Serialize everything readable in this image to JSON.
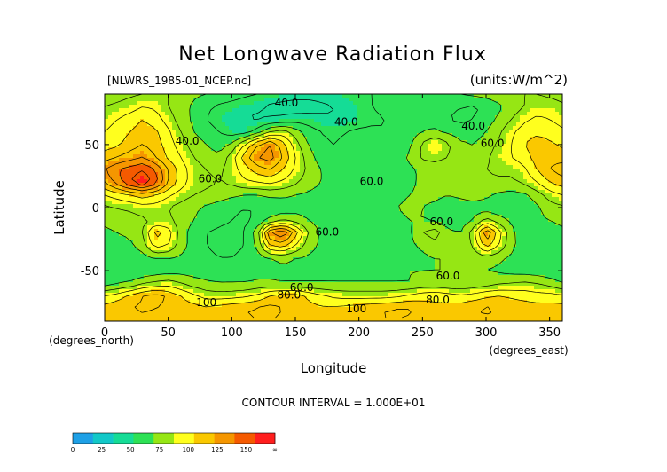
{
  "chart_data": {
    "type": "heatmap",
    "title": "Net Longwave Radiation Flux",
    "subtitle_left": "[NLWRS_1985-01_NCEP.nc]",
    "subtitle_right": "(units:W/m^2)",
    "xlabel": "Longitude",
    "ylabel": "Latitude",
    "x_unit_label": "(degrees_east)",
    "y_unit_label": "(degrees_north)",
    "xlim": [
      0,
      360
    ],
    "ylim": [
      -90,
      90
    ],
    "x_ticks": [
      "0",
      "50",
      "100",
      "150",
      "200",
      "250",
      "300",
      "350"
    ],
    "x_tick_values": [
      0,
      50,
      100,
      150,
      200,
      250,
      300,
      350
    ],
    "y_ticks": [
      "50",
      "0",
      "-50"
    ],
    "y_tick_values": [
      50,
      0,
      -50
    ],
    "contour_interval_text": "CONTOUR INTERVAL = 1.000E+01",
    "contour_labels": [
      {
        "text": "40.0",
        "x": 143,
        "y": 80
      },
      {
        "text": "40.0",
        "x": 190,
        "y": 65
      },
      {
        "text": "40.0",
        "x": 290,
        "y": 62
      },
      {
        "text": "40.0",
        "x": 65,
        "y": 50
      },
      {
        "text": "60.0",
        "x": 83,
        "y": 20
      },
      {
        "text": "60.0",
        "x": 305,
        "y": 48
      },
      {
        "text": "60.0",
        "x": 210,
        "y": 18
      },
      {
        "text": "60.0",
        "x": 265,
        "y": -14
      },
      {
        "text": "60.0",
        "x": 175,
        "y": -22
      },
      {
        "text": "60.0",
        "x": 270,
        "y": -57
      },
      {
        "text": "60.0",
        "x": 155,
        "y": -66
      },
      {
        "text": "80.0",
        "x": 145,
        "y": -72
      },
      {
        "text": "80.0",
        "x": 262,
        "y": -76
      },
      {
        "text": "100",
        "x": 80,
        "y": -78
      },
      {
        "text": "100",
        "x": 198,
        "y": -83
      }
    ],
    "colorbar": {
      "ticks": [
        "0",
        "25",
        "50",
        "75",
        "100",
        "125",
        "150",
        "∞"
      ],
      "colors": [
        "#1ea0e6",
        "#12c8c8",
        "#15dc96",
        "#2de155",
        "#96e614",
        "#ffff1e",
        "#fac800",
        "#f59600",
        "#f55a00",
        "#ff1e1e"
      ]
    },
    "data_description_grid": {
      "lon_step": 10,
      "lat_step": 10,
      "lats": [
        90,
        80,
        70,
        60,
        50,
        40,
        30,
        20,
        10,
        0,
        -10,
        -20,
        -30,
        -40,
        -50,
        -60,
        -70,
        -80,
        -90
      ],
      "values": [
        [
          65,
          66,
          68,
          70,
          72,
          70,
          66,
          62,
          60,
          58,
          55,
          52,
          50,
          48,
          46,
          45,
          44,
          44,
          45,
          46,
          48,
          50,
          52,
          54,
          55,
          56,
          57,
          58,
          60,
          62,
          64,
          66,
          68,
          70,
          70,
          68,
          66
        ],
        [
          70,
          72,
          75,
          80,
          78,
          70,
          64,
          58,
          52,
          48,
          46,
          44,
          42,
          38,
          36,
          34,
          35,
          38,
          40,
          42,
          46,
          50,
          52,
          54,
          56,
          58,
          56,
          52,
          50,
          48,
          52,
          58,
          64,
          70,
          75,
          75,
          72
        ],
        [
          75,
          80,
          85,
          90,
          85,
          75,
          65,
          58,
          50,
          45,
          42,
          40,
          38,
          40,
          42,
          45,
          45,
          42,
          40,
          42,
          45,
          48,
          50,
          52,
          55,
          58,
          55,
          50,
          48,
          50,
          55,
          62,
          70,
          78,
          82,
          80,
          76
        ],
        [
          80,
          85,
          90,
          95,
          92,
          82,
          70,
          60,
          55,
          50,
          45,
          45,
          55,
          70,
          75,
          65,
          55,
          50,
          48,
          50,
          52,
          52,
          50,
          50,
          55,
          60,
          62,
          58,
          55,
          55,
          60,
          68,
          78,
          85,
          88,
          86,
          82
        ],
        [
          85,
          88,
          95,
          100,
          95,
          85,
          75,
          65,
          60,
          55,
          62,
          80,
          100,
          110,
          95,
          75,
          60,
          52,
          50,
          52,
          52,
          50,
          50,
          52,
          58,
          72,
          80,
          72,
          62,
          60,
          65,
          72,
          80,
          90,
          95,
          92,
          88
        ],
        [
          95,
          100,
          105,
          110,
          100,
          88,
          80,
          70,
          65,
          62,
          75,
          95,
          110,
          115,
          100,
          80,
          65,
          55,
          52,
          50,
          50,
          50,
          52,
          55,
          62,
          72,
          75,
          70,
          65,
          62,
          68,
          75,
          80,
          85,
          95,
          98,
          96
        ],
        [
          110,
          120,
          125,
          130,
          120,
          100,
          85,
          75,
          70,
          68,
          75,
          85,
          95,
          100,
          90,
          78,
          68,
          60,
          55,
          52,
          50,
          50,
          52,
          55,
          58,
          62,
          62,
          60,
          62,
          65,
          70,
          72,
          72,
          78,
          90,
          100,
          105
        ],
        [
          100,
          115,
          130,
          140,
          125,
          100,
          85,
          75,
          72,
          70,
          72,
          78,
          80,
          82,
          78,
          72,
          65,
          60,
          56,
          52,
          50,
          50,
          52,
          55,
          58,
          62,
          62,
          60,
          62,
          66,
          68,
          68,
          68,
          72,
          80,
          90,
          95
        ],
        [
          80,
          85,
          90,
          95,
          90,
          82,
          75,
          70,
          68,
          65,
          62,
          60,
          60,
          62,
          62,
          60,
          58,
          56,
          54,
          52,
          52,
          52,
          55,
          58,
          60,
          62,
          62,
          60,
          62,
          64,
          62,
          58,
          56,
          58,
          65,
          75,
          80
        ],
        [
          68,
          70,
          72,
          75,
          75,
          70,
          66,
          62,
          58,
          55,
          52,
          50,
          50,
          52,
          54,
          55,
          55,
          54,
          55,
          55,
          55,
          55,
          58,
          60,
          62,
          60,
          58,
          55,
          55,
          56,
          55,
          52,
          50,
          52,
          58,
          65,
          68
        ],
        [
          62,
          64,
          66,
          68,
          70,
          72,
          66,
          60,
          56,
          52,
          50,
          48,
          52,
          62,
          68,
          66,
          60,
          56,
          55,
          55,
          55,
          55,
          55,
          58,
          60,
          60,
          58,
          55,
          55,
          60,
          72,
          65,
          58,
          55,
          58,
          60,
          62
        ],
        [
          58,
          60,
          62,
          70,
          95,
          85,
          65,
          55,
          50,
          48,
          48,
          50,
          65,
          110,
          120,
          95,
          70,
          58,
          55,
          55,
          55,
          55,
          55,
          56,
          58,
          70,
          75,
          62,
          60,
          75,
          110,
          85,
          62,
          55,
          56,
          56,
          58
        ],
        [
          55,
          56,
          58,
          65,
          85,
          80,
          65,
          55,
          50,
          48,
          48,
          50,
          62,
          90,
          95,
          80,
          65,
          58,
          55,
          55,
          55,
          55,
          55,
          55,
          58,
          62,
          66,
          62,
          60,
          72,
          95,
          80,
          62,
          56,
          55,
          55,
          55
        ],
        [
          52,
          52,
          54,
          56,
          60,
          60,
          58,
          54,
          52,
          50,
          50,
          52,
          55,
          60,
          62,
          60,
          58,
          56,
          55,
          55,
          55,
          55,
          55,
          55,
          56,
          58,
          60,
          60,
          60,
          62,
          65,
          62,
          58,
          55,
          54,
          52,
          52
        ],
        [
          50,
          50,
          50,
          52,
          54,
          55,
          56,
          55,
          54,
          54,
          54,
          55,
          56,
          56,
          58,
          58,
          58,
          58,
          58,
          58,
          58,
          58,
          58,
          58,
          60,
          60,
          60,
          60,
          60,
          60,
          60,
          58,
          56,
          55,
          54,
          52,
          50
        ],
        [
          55,
          58,
          62,
          68,
          72,
          75,
          70,
          65,
          62,
          60,
          60,
          60,
          62,
          62,
          60,
          60,
          60,
          60,
          60,
          60,
          60,
          60,
          60,
          60,
          60,
          62,
          62,
          60,
          60,
          62,
          65,
          68,
          70,
          72,
          70,
          66,
          60
        ],
        [
          80,
          85,
          92,
          100,
          105,
          98,
          90,
          82,
          76,
          75,
          76,
          78,
          82,
          90,
          95,
          95,
          88,
          82,
          78,
          76,
          76,
          76,
          76,
          78,
          82,
          86,
          88,
          85,
          82,
          84,
          88,
          90,
          88,
          86,
          84,
          84,
          82
        ],
        [
          95,
          98,
          100,
          102,
          100,
          98,
          96,
          95,
          92,
          95,
          98,
          100,
          102,
          104,
          100,
          96,
          94,
          92,
          92,
          94,
          96,
          98,
          100,
          102,
          102,
          96,
          92,
          94,
          96,
          100,
          102,
          100,
          98,
          96,
          95,
          95,
          95
        ],
        [
          90,
          92,
          94,
          96,
          96,
          95,
          94,
          92,
          92,
          94,
          96,
          98,
          100,
          100,
          98,
          96,
          94,
          92,
          92,
          94,
          96,
          98,
          100,
          100,
          98,
          94,
          92,
          92,
          94,
          96,
          98,
          96,
          94,
          92,
          92,
          90,
          90
        ]
      ]
    }
  }
}
